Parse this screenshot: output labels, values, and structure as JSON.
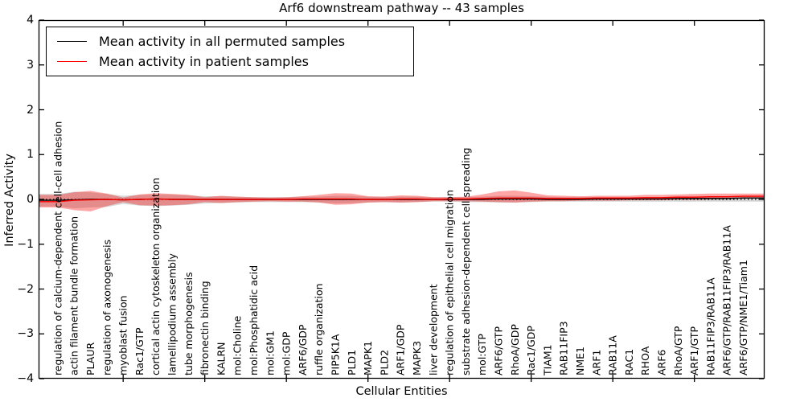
{
  "title": "Arf6 downstream pathway -- 43 samples",
  "axes": {
    "ylabel": "Inferred Activity",
    "xlabel": "Cellular Entities",
    "ytick_labels": [
      "4",
      "3",
      "2",
      "1",
      "0",
      "−1",
      "−2",
      "−3",
      "−4"
    ]
  },
  "legend": {
    "items": [
      {
        "label": "Mean activity in all permuted samples",
        "color": "#000000"
      },
      {
        "label": "Mean activity in patient samples",
        "color": "#ff0000"
      }
    ]
  },
  "chart_data": {
    "type": "line",
    "title": "Arf6 downstream pathway -- 43 samples",
    "xlabel": "Cellular Entities",
    "ylabel": "Inferred Activity",
    "ylim": [
      -4,
      4
    ],
    "yticks": [
      4,
      3,
      2,
      1,
      0,
      -1,
      -2,
      -3,
      -4
    ],
    "xtick_major_every": 5,
    "grid": false,
    "legend_position": "upper left",
    "reference_line": {
      "y": 0,
      "style": "dotted",
      "color": "#000000"
    },
    "categories": [
      "regulation of calcium-dependent cell-cell adhesion",
      "actin filament bundle formation",
      "PLAUR",
      "regulation of axonogenesis",
      "myoblast fusion",
      "Rac1/GTP",
      "cortical actin cytoskeleton organization",
      "lamellipodium assembly",
      "tube morphogenesis",
      "fibronectin binding",
      "KALRN",
      "mol:Choline",
      "mol:Phosphatidic acid",
      "mol:GM1",
      "mol:GDP",
      "ARF6/GDP",
      "ruffle organization",
      "PIP5K1A",
      "PLD1",
      "MAPK1",
      "PLD2",
      "ARF1/GDP",
      "MAPK3",
      "liver development",
      "regulation of epithelial cell migration",
      "substrate adhesion-dependent cell spreading",
      "mol:GTP",
      "ARF6/GTP",
      "RhoA/GDP",
      "Rac1/GDP",
      "TIAM1",
      "RAB11FIP3",
      "NME1",
      "ARF1",
      "RAB11A",
      "RAC1",
      "RHOA",
      "ARF6",
      "RhoA/GTP",
      "ARF1/GTP",
      "RAB11FIP3/RAB11A",
      "ARF6/GTP/RAB11FIP3/RAB11A",
      "ARF6/GTP/NME1/Tiam1"
    ],
    "series": [
      {
        "name": "Mean activity in all permuted samples",
        "line_color": "#000000",
        "band_color": "#999999",
        "band_opacity": 0.4,
        "mean": [
          -0.02,
          -0.01,
          0,
          0,
          -0.01,
          0,
          0.01,
          0,
          0,
          0,
          0,
          0,
          0,
          0,
          0,
          0,
          0,
          0,
          0,
          0,
          0,
          0,
          0,
          0,
          0,
          0,
          0,
          0.01,
          0.01,
          0.01,
          0,
          0,
          0,
          0.01,
          0.01,
          0.01,
          0.01,
          0.01,
          0.02,
          0.02,
          0.02,
          0.02,
          0.03
        ],
        "upper": [
          0.12,
          0.17,
          0.16,
          0.12,
          0.08,
          0.1,
          0.11,
          0.11,
          0.09,
          0.07,
          0.07,
          0.06,
          0.05,
          0.05,
          0.05,
          0.06,
          0.06,
          0.08,
          0.08,
          0.06,
          0.06,
          0.06,
          0.06,
          0.05,
          0.05,
          0.05,
          0.06,
          0.08,
          0.08,
          0.07,
          0.06,
          0.05,
          0.05,
          0.05,
          0.05,
          0.05,
          0.05,
          0.05,
          0.06,
          0.06,
          0.06,
          0.07,
          0.07
        ],
        "lower": [
          -0.16,
          -0.2,
          -0.18,
          -0.17,
          -0.1,
          -0.14,
          -0.15,
          -0.14,
          -0.12,
          -0.09,
          -0.08,
          -0.07,
          -0.06,
          -0.06,
          -0.06,
          -0.06,
          -0.07,
          -0.09,
          -0.08,
          -0.07,
          -0.06,
          -0.07,
          -0.06,
          -0.05,
          -0.05,
          -0.06,
          -0.06,
          -0.07,
          -0.07,
          -0.06,
          -0.05,
          -0.05,
          -0.05,
          -0.05,
          -0.05,
          -0.05,
          -0.05,
          -0.05,
          -0.05,
          -0.05,
          -0.05,
          -0.05,
          -0.05
        ]
      },
      {
        "name": "Mean activity in patient samples",
        "line_color": "#ff0000",
        "band_color": "#ff0000",
        "band_opacity": 0.35,
        "mean": [
          -0.05,
          -0.02,
          -0.01,
          0,
          -0.01,
          0,
          0.01,
          0,
          0,
          0,
          0,
          0,
          0,
          0,
          0,
          0.01,
          0.01,
          0.01,
          0.01,
          0,
          0,
          0.01,
          0.01,
          0,
          0.01,
          0.01,
          0.02,
          0.03,
          0.03,
          0.03,
          0.02,
          0.02,
          0.02,
          0.03,
          0.03,
          0.03,
          0.04,
          0.04,
          0.05,
          0.05,
          0.06,
          0.06,
          0.07
        ],
        "upper": [
          0.1,
          0.16,
          0.19,
          0.13,
          0.04,
          0.11,
          0.14,
          0.12,
          0.1,
          0.05,
          0.08,
          0.06,
          0.05,
          0.04,
          0.05,
          0.07,
          0.1,
          0.14,
          0.13,
          0.07,
          0.06,
          0.09,
          0.08,
          0.05,
          0.05,
          0.06,
          0.11,
          0.18,
          0.2,
          0.15,
          0.09,
          0.08,
          0.07,
          0.08,
          0.08,
          0.08,
          0.1,
          0.1,
          0.11,
          0.12,
          0.13,
          0.13,
          0.13
        ],
        "lower": [
          -0.18,
          -0.24,
          -0.27,
          -0.15,
          -0.06,
          -0.13,
          -0.14,
          -0.13,
          -0.11,
          -0.06,
          -0.08,
          -0.06,
          -0.05,
          -0.04,
          -0.05,
          -0.05,
          -0.07,
          -0.12,
          -0.11,
          -0.07,
          -0.06,
          -0.07,
          -0.06,
          -0.04,
          -0.04,
          -0.04,
          -0.05,
          -0.06,
          -0.07,
          -0.05,
          -0.04,
          -0.04,
          -0.03,
          -0.03,
          -0.03,
          -0.02,
          -0.02,
          -0.02,
          -0.01,
          -0.01,
          0,
          0.01,
          0.02
        ]
      }
    ]
  }
}
